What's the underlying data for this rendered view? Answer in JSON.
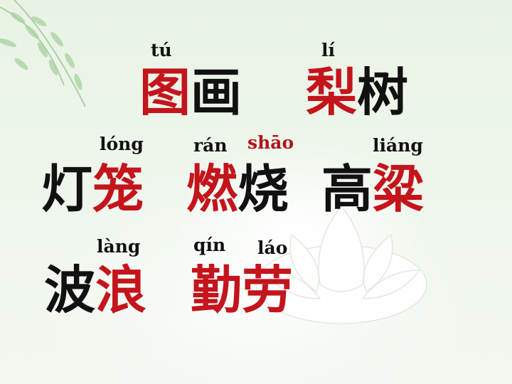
{
  "colors": {
    "highlight": "#c4141c",
    "text": "#111111"
  },
  "words": [
    {
      "pinyin": "tú",
      "pinyin_color": "black",
      "chars": [
        {
          "c": "图",
          "color": "red"
        },
        {
          "c": "画",
          "color": "black"
        }
      ]
    },
    {
      "pinyin": "lí",
      "pinyin_color": "black",
      "chars": [
        {
          "c": "梨",
          "color": "red"
        },
        {
          "c": "树",
          "color": "black"
        }
      ]
    },
    {
      "pinyin": "lóng",
      "pinyin_color": "black",
      "chars": [
        {
          "c": "灯",
          "color": "black"
        },
        {
          "c": "笼",
          "color": "red"
        }
      ]
    },
    {
      "pinyin": "rán",
      "pinyin_color": "black",
      "pinyin2": "shāo",
      "pinyin2_color": "red",
      "chars": [
        {
          "c": "燃",
          "color": "red"
        },
        {
          "c": "烧",
          "color": "black"
        }
      ]
    },
    {
      "pinyin": "liáng",
      "pinyin_color": "black",
      "chars": [
        {
          "c": "高",
          "color": "black"
        },
        {
          "c": "粱",
          "color": "red"
        }
      ]
    },
    {
      "pinyin": "làng",
      "pinyin_color": "black",
      "chars": [
        {
          "c": "波",
          "color": "black"
        },
        {
          "c": "浪",
          "color": "red"
        }
      ]
    },
    {
      "pinyin": "qín",
      "pinyin_color": "black",
      "pinyin2": "láo",
      "pinyin2_color": "black",
      "chars": [
        {
          "c": "勤",
          "color": "red"
        },
        {
          "c": "劳",
          "color": "red"
        }
      ]
    }
  ]
}
